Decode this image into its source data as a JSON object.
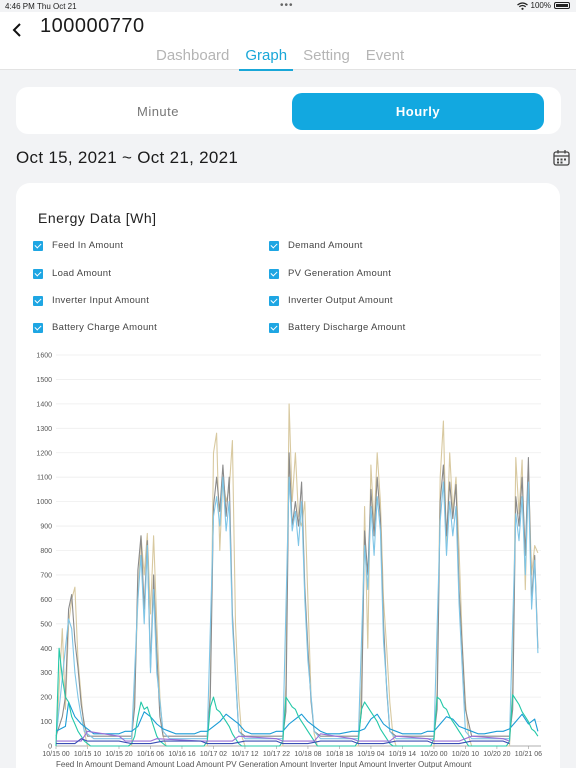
{
  "status": {
    "time": "4:46 PM",
    "date": "Thu Oct 21",
    "battery": "100%",
    "icons": [
      "wifi-icon",
      "battery-icon"
    ]
  },
  "header": {
    "title": "100000770",
    "tabs": [
      "Dashboard",
      "Graph",
      "Setting",
      "Event"
    ],
    "active_tab": "Graph",
    "back_icon": "chevron-left-icon"
  },
  "toggle": {
    "minute": "Minute",
    "hourly": "Hourly",
    "selected": "Hourly"
  },
  "date_range": "Oct 15, 2021 ~ Oct 21, 2021",
  "calendar_icon": "calendar-icon",
  "colors": {
    "accent": "#12a8e0",
    "checkbox": "#1ea6e3"
  },
  "chart_data": {
    "type": "line",
    "title": "Energy Data [Wh]",
    "legend": [
      "Feed In Amount",
      "Demand Amount",
      "Load Amount",
      "PV Generation Amount",
      "Inverter Input Amount",
      "Inverter Output Amount",
      "Battery Charge Amount",
      "Battery Discharge Amount"
    ],
    "yticks": [
      0,
      100,
      200,
      300,
      400,
      500,
      600,
      700,
      800,
      900,
      1000,
      1100,
      1200,
      1300,
      1400,
      1500,
      1600
    ],
    "ylim": [
      0,
      1600
    ],
    "xticks": [
      "10/15 00",
      "10/15 10",
      "10/15 20",
      "10/16 06",
      "10/16 16",
      "10/17 02",
      "10/17 12",
      "10/17 22",
      "10/18 08",
      "10/18 18",
      "10/19 04",
      "10/19 14",
      "10/20 00",
      "10/20 10",
      "10/20 20",
      "10/21 06"
    ],
    "xlim": [
      0,
      154
    ],
    "grid": true,
    "bottom_legend_cut": "Feed In Amount    Demand Amount    Load Amount    PV Generation Amount    Inverter Input Amount    Inverter Output Amount",
    "series": [
      {
        "name": "PV Generation Amount",
        "color": "#d8c9a0",
        "x": [
          0,
          2,
          3,
          4,
          5,
          6,
          7,
          8,
          9,
          10,
          11,
          24,
          25,
          26,
          27,
          28,
          29,
          30,
          31,
          32,
          33,
          34,
          35,
          36,
          48,
          49,
          50,
          51,
          52,
          53,
          54,
          55,
          56,
          57,
          58,
          59,
          60,
          61,
          62,
          72,
          73,
          74,
          75,
          76,
          77,
          78,
          79,
          80,
          81,
          82,
          83,
          84,
          96,
          97,
          98,
          99,
          100,
          101,
          102,
          103,
          104,
          105,
          106,
          107,
          108,
          120,
          121,
          122,
          123,
          124,
          125,
          126,
          127,
          128,
          129,
          130,
          131,
          132,
          144,
          145,
          146,
          147,
          148,
          149,
          150,
          151,
          152,
          153
        ],
        "y": [
          0,
          480,
          150,
          500,
          600,
          650,
          350,
          200,
          60,
          0,
          0,
          0,
          230,
          600,
          860,
          700,
          870,
          540,
          860,
          500,
          200,
          40,
          0,
          0,
          0,
          230,
          1200,
          1280,
          800,
          1100,
          1000,
          1050,
          1250,
          500,
          200,
          40,
          0,
          0,
          0,
          0,
          250,
          1400,
          1000,
          1200,
          940,
          900,
          1000,
          600,
          200,
          50,
          0,
          0,
          0,
          250,
          980,
          400,
          1150,
          900,
          1200,
          1000,
          600,
          400,
          180,
          40,
          0,
          0,
          230,
          1100,
          1330,
          800,
          1200,
          960,
          1100,
          800,
          420,
          180,
          40,
          0,
          0,
          240,
          1180,
          950,
          1170,
          640,
          1130,
          700,
          820,
          790
        ]
      },
      {
        "name": "Demand Amount",
        "color": "#8a8a8a",
        "x": [
          0,
          2,
          3,
          4,
          5,
          6,
          7,
          8,
          9,
          10,
          12,
          24,
          25,
          26,
          27,
          28,
          29,
          30,
          31,
          32,
          33,
          34,
          36,
          48,
          49,
          50,
          51,
          52,
          53,
          54,
          55,
          56,
          57,
          58,
          60,
          72,
          73,
          74,
          75,
          76,
          77,
          78,
          79,
          80,
          81,
          82,
          84,
          96,
          97,
          98,
          99,
          100,
          101,
          102,
          103,
          104,
          105,
          106,
          108,
          120,
          121,
          122,
          123,
          124,
          125,
          126,
          127,
          128,
          129,
          130,
          132,
          144,
          145,
          146,
          147,
          148,
          149,
          150,
          151,
          152,
          153
        ],
        "y": [
          40,
          120,
          200,
          560,
          620,
          430,
          320,
          170,
          90,
          40,
          40,
          40,
          160,
          720,
          860,
          560,
          840,
          320,
          700,
          380,
          120,
          40,
          40,
          40,
          200,
          980,
          1100,
          960,
          1150,
          940,
          1100,
          540,
          300,
          60,
          40,
          40,
          140,
          1200,
          900,
          1000,
          900,
          1080,
          650,
          400,
          180,
          60,
          40,
          40,
          140,
          880,
          700,
          1050,
          860,
          1100,
          930,
          500,
          230,
          60,
          40,
          40,
          150,
          1000,
          1150,
          860,
          1080,
          930,
          1070,
          640,
          400,
          150,
          40,
          40,
          150,
          1020,
          900,
          1100,
          780,
          1180,
          600,
          780,
          400
        ]
      },
      {
        "name": "Inverter Output Amount",
        "color": "#7fc5e6",
        "x": [
          0,
          3,
          4,
          5,
          6,
          7,
          8,
          9,
          12,
          24,
          26,
          27,
          28,
          29,
          30,
          31,
          32,
          34,
          36,
          48,
          50,
          51,
          52,
          53,
          54,
          55,
          56,
          58,
          60,
          72,
          74,
          75,
          76,
          77,
          78,
          79,
          80,
          82,
          84,
          96,
          98,
          99,
          100,
          101,
          102,
          103,
          104,
          106,
          108,
          120,
          122,
          123,
          124,
          125,
          126,
          127,
          128,
          130,
          132,
          144,
          146,
          147,
          148,
          149,
          150,
          151,
          152,
          153
        ],
        "y": [
          30,
          400,
          520,
          480,
          300,
          200,
          120,
          60,
          30,
          30,
          600,
          780,
          500,
          820,
          300,
          640,
          300,
          60,
          30,
          30,
          940,
          1020,
          900,
          1100,
          880,
          1000,
          500,
          60,
          30,
          30,
          1100,
          880,
          960,
          820,
          1000,
          600,
          350,
          60,
          30,
          30,
          820,
          640,
          980,
          780,
          1020,
          880,
          430,
          60,
          30,
          30,
          920,
          1080,
          780,
          1000,
          860,
          980,
          580,
          60,
          30,
          30,
          950,
          840,
          1020,
          700,
          1080,
          560,
          760,
          380
        ]
      },
      {
        "name": "Load Amount",
        "color": "#1b9cd6",
        "x": [
          0,
          3,
          4,
          6,
          8,
          10,
          12,
          14,
          20,
          22,
          24,
          26,
          28,
          30,
          32,
          34,
          36,
          38,
          40,
          42,
          44,
          46,
          48,
          50,
          52,
          54,
          56,
          58,
          60,
          62,
          64,
          66,
          68,
          70,
          72,
          74,
          76,
          78,
          80,
          82,
          84,
          86,
          88,
          90,
          92,
          94,
          96,
          98,
          100,
          102,
          104,
          106,
          108,
          110,
          112,
          114,
          116,
          118,
          120,
          122,
          124,
          126,
          128,
          130,
          132,
          134,
          136,
          138,
          140,
          142,
          144,
          146,
          148,
          150,
          152,
          153
        ],
        "y": [
          60,
          80,
          180,
          120,
          90,
          70,
          50,
          50,
          50,
          60,
          60,
          80,
          140,
          120,
          90,
          70,
          60,
          50,
          50,
          50,
          50,
          60,
          60,
          80,
          100,
          130,
          110,
          90,
          60,
          50,
          50,
          50,
          50,
          60,
          60,
          90,
          110,
          130,
          100,
          80,
          60,
          50,
          50,
          50,
          55,
          60,
          60,
          70,
          110,
          130,
          90,
          70,
          60,
          50,
          50,
          50,
          50,
          60,
          60,
          90,
          120,
          110,
          80,
          70,
          60,
          50,
          50,
          55,
          60,
          60,
          70,
          100,
          130,
          90,
          110,
          60
        ]
      },
      {
        "name": "Feed In Amount",
        "color": "#24c8a8",
        "x": [
          0,
          1,
          2,
          3,
          4,
          5,
          6,
          7,
          8,
          9,
          10,
          11,
          23,
          24,
          25,
          26,
          27,
          28,
          29,
          30,
          31,
          32,
          33,
          34,
          35,
          47,
          48,
          49,
          50,
          51,
          52,
          53,
          54,
          55,
          56,
          57,
          58,
          59,
          71,
          72,
          73,
          74,
          75,
          76,
          77,
          78,
          79,
          80,
          81,
          82,
          83,
          95,
          96,
          97,
          98,
          99,
          100,
          101,
          102,
          103,
          104,
          105,
          106,
          107,
          119,
          120,
          121,
          122,
          123,
          124,
          125,
          126,
          127,
          128,
          129,
          130,
          131,
          143,
          144,
          145,
          146,
          147,
          148,
          149,
          150,
          151,
          152,
          153
        ],
        "y": [
          0,
          400,
          280,
          200,
          180,
          120,
          90,
          60,
          40,
          20,
          10,
          0,
          0,
          10,
          40,
          120,
          180,
          150,
          160,
          120,
          80,
          40,
          20,
          10,
          0,
          0,
          20,
          160,
          200,
          150,
          140,
          120,
          100,
          80,
          50,
          30,
          10,
          0,
          0,
          20,
          200,
          180,
          160,
          150,
          120,
          100,
          80,
          60,
          40,
          20,
          0,
          0,
          20,
          150,
          180,
          160,
          140,
          120,
          100,
          70,
          50,
          30,
          10,
          0,
          0,
          30,
          200,
          190,
          160,
          150,
          120,
          100,
          80,
          60,
          40,
          20,
          0,
          0,
          20,
          210,
          190,
          170,
          140,
          120,
          100,
          70,
          60,
          40
        ]
      },
      {
        "name": "Battery Discharge Amount",
        "color": "#9b6fd6",
        "x": [
          0,
          8,
          10,
          20,
          22,
          24,
          30,
          32,
          46,
          48,
          56,
          58,
          70,
          72,
          82,
          84,
          94,
          96,
          106,
          108,
          118,
          120,
          128,
          132,
          142,
          144
        ],
        "y": [
          20,
          20,
          60,
          40,
          20,
          20,
          20,
          30,
          20,
          20,
          20,
          40,
          30,
          20,
          20,
          50,
          30,
          20,
          20,
          40,
          30,
          20,
          20,
          40,
          30,
          20
        ]
      },
      {
        "name": "Battery Charge Amount",
        "color": "#3a4fb5",
        "x": [
          0,
          6,
          8,
          10,
          20,
          24,
          30,
          34,
          46,
          48,
          56,
          60,
          70,
          72,
          80,
          84,
          94,
          96,
          104,
          108,
          118,
          120,
          128,
          132,
          142,
          144
        ],
        "y": [
          10,
          10,
          30,
          20,
          20,
          10,
          10,
          20,
          20,
          10,
          10,
          20,
          20,
          10,
          10,
          20,
          20,
          10,
          10,
          20,
          20,
          10,
          10,
          20,
          20,
          10
        ]
      }
    ]
  }
}
